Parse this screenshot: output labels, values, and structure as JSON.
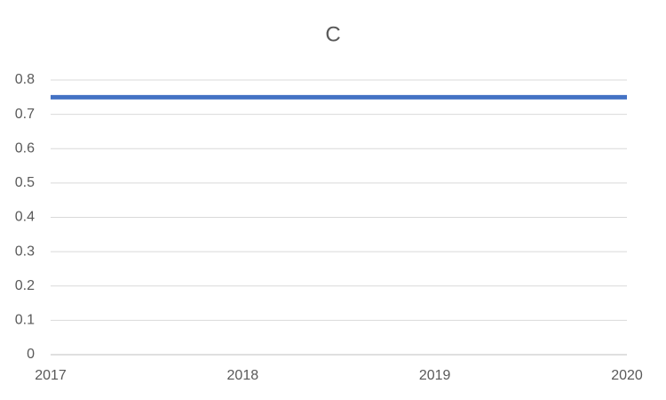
{
  "chart_data": {
    "type": "line",
    "title": "C",
    "x": [
      2017,
      2018,
      2019,
      2020
    ],
    "values": [
      0.75,
      0.75,
      0.75,
      0.75
    ],
    "color": "#4472c4",
    "xlim": [
      2017,
      2020
    ],
    "xticks": [
      2017,
      2018,
      2019,
      2020
    ],
    "ylim": [
      0,
      0.8
    ],
    "yticks": [
      0,
      0.1,
      0.2,
      0.3,
      0.4,
      0.5,
      0.6,
      0.7,
      0.8
    ],
    "grid": true
  }
}
